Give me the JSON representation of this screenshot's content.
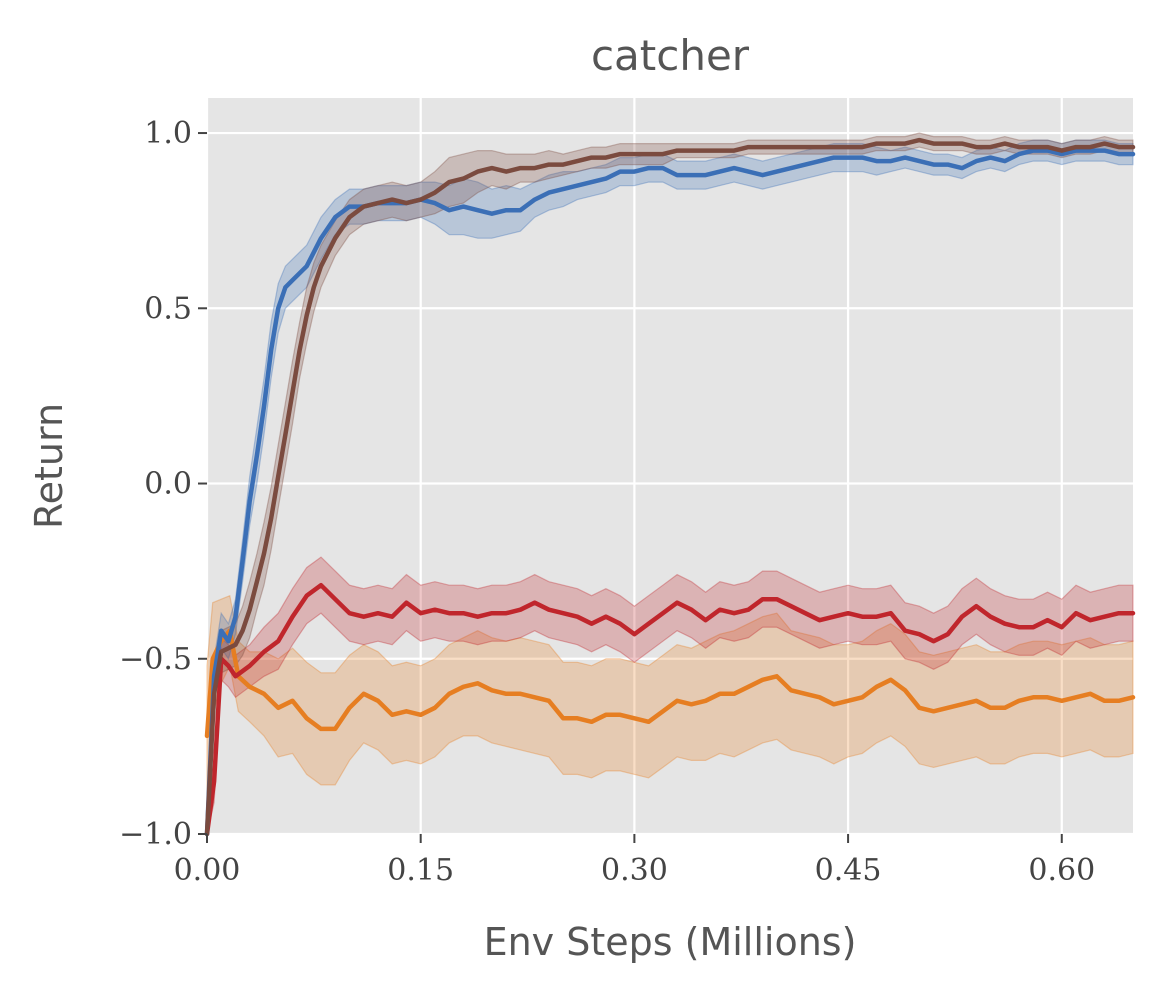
{
  "chart_data": {
    "type": "line",
    "title": "catcher",
    "xlabel": "Env Steps (Millions)",
    "ylabel": "Return",
    "xlim": [
      0.0,
      0.65
    ],
    "ylim": [
      -1.0,
      1.1
    ],
    "xticks": [
      0.0,
      0.15,
      0.3,
      0.45,
      0.6
    ],
    "xtick_labels": [
      "0.00",
      "0.15",
      "0.30",
      "0.45",
      "0.60"
    ],
    "yticks": [
      -1.0,
      -0.5,
      0.0,
      0.5,
      1.0
    ],
    "ytick_labels": [
      "−1.0",
      "−0.5",
      "0.0",
      "0.5",
      "1.0"
    ],
    "grid": true,
    "background": "#e5e5e5",
    "series": [
      {
        "color": "#e67e22",
        "x": [
          0.0,
          0.004,
          0.01,
          0.016,
          0.022,
          0.03,
          0.04,
          0.05,
          0.06,
          0.07,
          0.08,
          0.09,
          0.1,
          0.11,
          0.12,
          0.13,
          0.14,
          0.15,
          0.16,
          0.17,
          0.18,
          0.19,
          0.2,
          0.21,
          0.22,
          0.23,
          0.24,
          0.25,
          0.26,
          0.27,
          0.28,
          0.29,
          0.3,
          0.31,
          0.32,
          0.33,
          0.34,
          0.35,
          0.36,
          0.37,
          0.38,
          0.39,
          0.4,
          0.41,
          0.42,
          0.43,
          0.44,
          0.45,
          0.46,
          0.47,
          0.48,
          0.49,
          0.5,
          0.51,
          0.52,
          0.53,
          0.54,
          0.55,
          0.56,
          0.57,
          0.58,
          0.59,
          0.6,
          0.61,
          0.62,
          0.63,
          0.64,
          0.65
        ],
        "y": [
          -0.72,
          -0.5,
          -0.45,
          -0.42,
          -0.55,
          -0.58,
          -0.6,
          -0.64,
          -0.62,
          -0.67,
          -0.7,
          -0.7,
          -0.64,
          -0.6,
          -0.62,
          -0.66,
          -0.65,
          -0.66,
          -0.64,
          -0.6,
          -0.58,
          -0.57,
          -0.59,
          -0.6,
          -0.6,
          -0.61,
          -0.62,
          -0.67,
          -0.67,
          -0.68,
          -0.66,
          -0.66,
          -0.67,
          -0.68,
          -0.65,
          -0.62,
          -0.63,
          -0.62,
          -0.6,
          -0.6,
          -0.58,
          -0.56,
          -0.55,
          -0.59,
          -0.6,
          -0.61,
          -0.63,
          -0.62,
          -0.61,
          -0.58,
          -0.56,
          -0.59,
          -0.64,
          -0.65,
          -0.64,
          -0.63,
          -0.62,
          -0.64,
          -0.64,
          -0.62,
          -0.61,
          -0.61,
          -0.62,
          -0.61,
          -0.6,
          -0.62,
          -0.62,
          -0.61
        ],
        "spread": [
          0.2,
          0.16,
          0.12,
          0.1,
          0.1,
          0.1,
          0.12,
          0.14,
          0.15,
          0.16,
          0.16,
          0.16,
          0.15,
          0.14,
          0.14,
          0.14,
          0.14,
          0.14,
          0.14,
          0.14,
          0.14,
          0.15,
          0.15,
          0.15,
          0.16,
          0.16,
          0.16,
          0.16,
          0.16,
          0.16,
          0.16,
          0.16,
          0.16,
          0.16,
          0.16,
          0.16,
          0.16,
          0.17,
          0.17,
          0.18,
          0.18,
          0.18,
          0.18,
          0.17,
          0.17,
          0.17,
          0.17,
          0.16,
          0.16,
          0.16,
          0.16,
          0.16,
          0.16,
          0.16,
          0.16,
          0.16,
          0.16,
          0.16,
          0.16,
          0.16,
          0.16,
          0.16,
          0.16,
          0.16,
          0.16,
          0.16,
          0.16,
          0.16
        ]
      },
      {
        "color": "#c0262c",
        "x": [
          0.0,
          0.005,
          0.01,
          0.015,
          0.02,
          0.03,
          0.04,
          0.05,
          0.06,
          0.07,
          0.08,
          0.09,
          0.1,
          0.11,
          0.12,
          0.13,
          0.14,
          0.15,
          0.16,
          0.17,
          0.18,
          0.19,
          0.2,
          0.21,
          0.22,
          0.23,
          0.24,
          0.25,
          0.26,
          0.27,
          0.28,
          0.29,
          0.3,
          0.31,
          0.32,
          0.33,
          0.34,
          0.35,
          0.36,
          0.37,
          0.38,
          0.39,
          0.4,
          0.41,
          0.42,
          0.43,
          0.44,
          0.45,
          0.46,
          0.47,
          0.48,
          0.49,
          0.5,
          0.51,
          0.52,
          0.53,
          0.54,
          0.55,
          0.56,
          0.57,
          0.58,
          0.59,
          0.6,
          0.61,
          0.62,
          0.63,
          0.64,
          0.65
        ],
        "y": [
          -1.0,
          -0.85,
          -0.5,
          -0.52,
          -0.55,
          -0.52,
          -0.48,
          -0.45,
          -0.38,
          -0.32,
          -0.29,
          -0.33,
          -0.37,
          -0.38,
          -0.37,
          -0.38,
          -0.34,
          -0.37,
          -0.36,
          -0.37,
          -0.37,
          -0.38,
          -0.37,
          -0.37,
          -0.36,
          -0.34,
          -0.36,
          -0.37,
          -0.38,
          -0.4,
          -0.38,
          -0.4,
          -0.43,
          -0.4,
          -0.37,
          -0.34,
          -0.36,
          -0.39,
          -0.36,
          -0.37,
          -0.36,
          -0.33,
          -0.33,
          -0.35,
          -0.37,
          -0.39,
          -0.38,
          -0.37,
          -0.38,
          -0.38,
          -0.37,
          -0.42,
          -0.43,
          -0.45,
          -0.43,
          -0.38,
          -0.35,
          -0.38,
          -0.4,
          -0.41,
          -0.41,
          -0.39,
          -0.41,
          -0.37,
          -0.39,
          -0.38,
          -0.37,
          -0.37
        ],
        "spread": [
          0.05,
          0.06,
          0.06,
          0.06,
          0.06,
          0.06,
          0.07,
          0.08,
          0.08,
          0.08,
          0.08,
          0.08,
          0.08,
          0.08,
          0.08,
          0.08,
          0.08,
          0.08,
          0.08,
          0.08,
          0.08,
          0.08,
          0.08,
          0.08,
          0.08,
          0.08,
          0.08,
          0.08,
          0.08,
          0.08,
          0.08,
          0.08,
          0.08,
          0.08,
          0.08,
          0.08,
          0.08,
          0.08,
          0.08,
          0.08,
          0.08,
          0.08,
          0.08,
          0.08,
          0.08,
          0.08,
          0.08,
          0.08,
          0.08,
          0.08,
          0.08,
          0.08,
          0.08,
          0.08,
          0.08,
          0.08,
          0.08,
          0.08,
          0.08,
          0.08,
          0.08,
          0.08,
          0.08,
          0.08,
          0.08,
          0.08,
          0.08,
          0.08
        ]
      },
      {
        "color": "#3b6fb6",
        "x": [
          0.0,
          0.005,
          0.01,
          0.015,
          0.02,
          0.025,
          0.03,
          0.035,
          0.04,
          0.045,
          0.05,
          0.055,
          0.06,
          0.07,
          0.08,
          0.09,
          0.1,
          0.11,
          0.12,
          0.13,
          0.14,
          0.15,
          0.16,
          0.17,
          0.18,
          0.19,
          0.2,
          0.21,
          0.22,
          0.23,
          0.24,
          0.25,
          0.26,
          0.27,
          0.28,
          0.29,
          0.3,
          0.31,
          0.32,
          0.33,
          0.34,
          0.35,
          0.36,
          0.37,
          0.38,
          0.39,
          0.4,
          0.41,
          0.42,
          0.43,
          0.44,
          0.45,
          0.46,
          0.47,
          0.48,
          0.49,
          0.5,
          0.51,
          0.52,
          0.53,
          0.54,
          0.55,
          0.56,
          0.57,
          0.58,
          0.59,
          0.6,
          0.61,
          0.62,
          0.63,
          0.64,
          0.65
        ],
        "y": [
          -1.0,
          -0.55,
          -0.42,
          -0.45,
          -0.38,
          -0.22,
          -0.05,
          0.08,
          0.22,
          0.38,
          0.5,
          0.56,
          0.58,
          0.62,
          0.7,
          0.76,
          0.79,
          0.79,
          0.8,
          0.8,
          0.8,
          0.81,
          0.8,
          0.78,
          0.79,
          0.78,
          0.77,
          0.78,
          0.78,
          0.81,
          0.83,
          0.84,
          0.85,
          0.86,
          0.87,
          0.89,
          0.89,
          0.9,
          0.9,
          0.88,
          0.88,
          0.88,
          0.89,
          0.9,
          0.89,
          0.88,
          0.89,
          0.9,
          0.91,
          0.92,
          0.93,
          0.93,
          0.93,
          0.92,
          0.92,
          0.93,
          0.92,
          0.91,
          0.91,
          0.9,
          0.92,
          0.93,
          0.92,
          0.94,
          0.95,
          0.95,
          0.94,
          0.95,
          0.95,
          0.95,
          0.94,
          0.94
        ],
        "spread": [
          0.05,
          0.05,
          0.05,
          0.05,
          0.05,
          0.06,
          0.07,
          0.08,
          0.08,
          0.08,
          0.07,
          0.06,
          0.06,
          0.06,
          0.06,
          0.05,
          0.05,
          0.05,
          0.05,
          0.05,
          0.05,
          0.05,
          0.06,
          0.07,
          0.08,
          0.08,
          0.07,
          0.07,
          0.06,
          0.05,
          0.05,
          0.05,
          0.04,
          0.04,
          0.04,
          0.04,
          0.04,
          0.04,
          0.04,
          0.04,
          0.04,
          0.04,
          0.04,
          0.04,
          0.04,
          0.04,
          0.04,
          0.04,
          0.04,
          0.04,
          0.04,
          0.04,
          0.04,
          0.04,
          0.03,
          0.03,
          0.03,
          0.03,
          0.03,
          0.03,
          0.03,
          0.03,
          0.03,
          0.03,
          0.03,
          0.03,
          0.03,
          0.03,
          0.03,
          0.03,
          0.03,
          0.03
        ]
      },
      {
        "color": "#7b4b3f",
        "x": [
          0.0,
          0.005,
          0.01,
          0.015,
          0.02,
          0.025,
          0.03,
          0.035,
          0.04,
          0.045,
          0.05,
          0.055,
          0.06,
          0.065,
          0.07,
          0.075,
          0.08,
          0.09,
          0.1,
          0.11,
          0.12,
          0.13,
          0.14,
          0.15,
          0.16,
          0.17,
          0.18,
          0.19,
          0.2,
          0.21,
          0.22,
          0.23,
          0.24,
          0.25,
          0.26,
          0.27,
          0.28,
          0.29,
          0.3,
          0.31,
          0.32,
          0.33,
          0.34,
          0.35,
          0.36,
          0.37,
          0.38,
          0.39,
          0.4,
          0.41,
          0.42,
          0.43,
          0.44,
          0.45,
          0.46,
          0.47,
          0.48,
          0.49,
          0.5,
          0.51,
          0.52,
          0.53,
          0.54,
          0.55,
          0.56,
          0.57,
          0.58,
          0.59,
          0.6,
          0.61,
          0.62,
          0.63,
          0.64,
          0.65
        ],
        "y": [
          -1.0,
          -0.6,
          -0.48,
          -0.47,
          -0.46,
          -0.42,
          -0.36,
          -0.28,
          -0.2,
          -0.1,
          0.02,
          0.14,
          0.26,
          0.38,
          0.48,
          0.56,
          0.62,
          0.7,
          0.76,
          0.79,
          0.8,
          0.81,
          0.8,
          0.81,
          0.83,
          0.86,
          0.87,
          0.89,
          0.9,
          0.89,
          0.9,
          0.9,
          0.91,
          0.91,
          0.92,
          0.93,
          0.93,
          0.94,
          0.94,
          0.94,
          0.94,
          0.95,
          0.95,
          0.95,
          0.95,
          0.95,
          0.96,
          0.96,
          0.96,
          0.96,
          0.96,
          0.96,
          0.96,
          0.96,
          0.96,
          0.97,
          0.97,
          0.97,
          0.98,
          0.97,
          0.97,
          0.97,
          0.96,
          0.96,
          0.97,
          0.96,
          0.96,
          0.96,
          0.95,
          0.96,
          0.96,
          0.97,
          0.96,
          0.96
        ],
        "spread": [
          0.05,
          0.06,
          0.06,
          0.06,
          0.06,
          0.07,
          0.08,
          0.08,
          0.09,
          0.09,
          0.09,
          0.09,
          0.09,
          0.08,
          0.08,
          0.07,
          0.06,
          0.05,
          0.05,
          0.05,
          0.05,
          0.05,
          0.05,
          0.05,
          0.06,
          0.07,
          0.07,
          0.06,
          0.05,
          0.05,
          0.04,
          0.04,
          0.04,
          0.03,
          0.03,
          0.03,
          0.03,
          0.03,
          0.03,
          0.03,
          0.03,
          0.02,
          0.02,
          0.02,
          0.02,
          0.02,
          0.02,
          0.02,
          0.02,
          0.02,
          0.02,
          0.02,
          0.02,
          0.02,
          0.02,
          0.02,
          0.02,
          0.02,
          0.02,
          0.02,
          0.02,
          0.02,
          0.02,
          0.02,
          0.02,
          0.02,
          0.02,
          0.02,
          0.02,
          0.02,
          0.02,
          0.02,
          0.02,
          0.02
        ]
      }
    ]
  }
}
